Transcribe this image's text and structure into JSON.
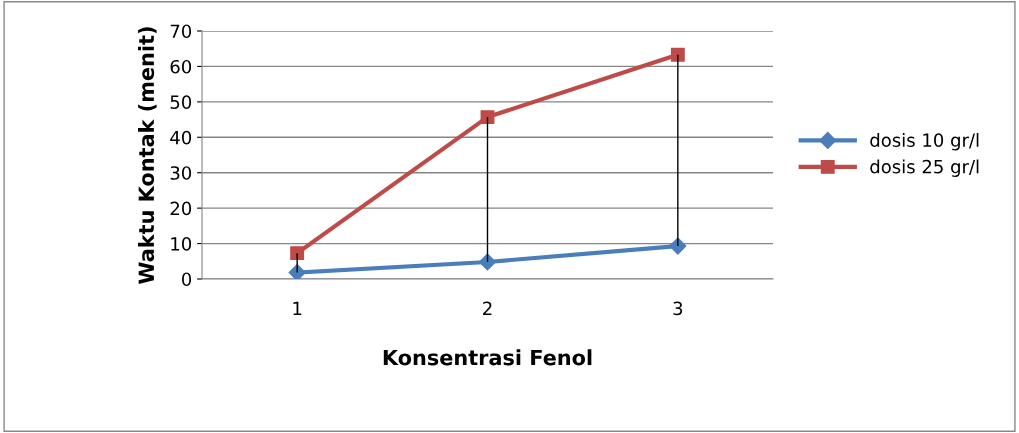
{
  "chart_data": {
    "type": "line",
    "xlabel": "Konsentrasi Fenol",
    "ylabel": "Waktu Kontak (menit)",
    "categories": [
      "1",
      "2",
      "3"
    ],
    "series": [
      {
        "name": "dosis 10 gr/l",
        "color": "#4a7ebb",
        "marker": "diamond",
        "values": [
          1.8,
          4.8,
          9.3
        ]
      },
      {
        "name": "dosis 25 gr/l",
        "color": "#be4b48",
        "marker": "square",
        "values": [
          7.3,
          45.7,
          63.3
        ],
        "errors": [
          [
            1.8,
            7.3
          ],
          [
            4.8,
            45.7
          ],
          [
            9.3,
            63.3
          ]
        ]
      }
    ],
    "ylim": [
      0,
      70
    ],
    "yticks": [
      0,
      10,
      20,
      30,
      40,
      50,
      60,
      70
    ],
    "grid": "y",
    "legend": "right"
  }
}
